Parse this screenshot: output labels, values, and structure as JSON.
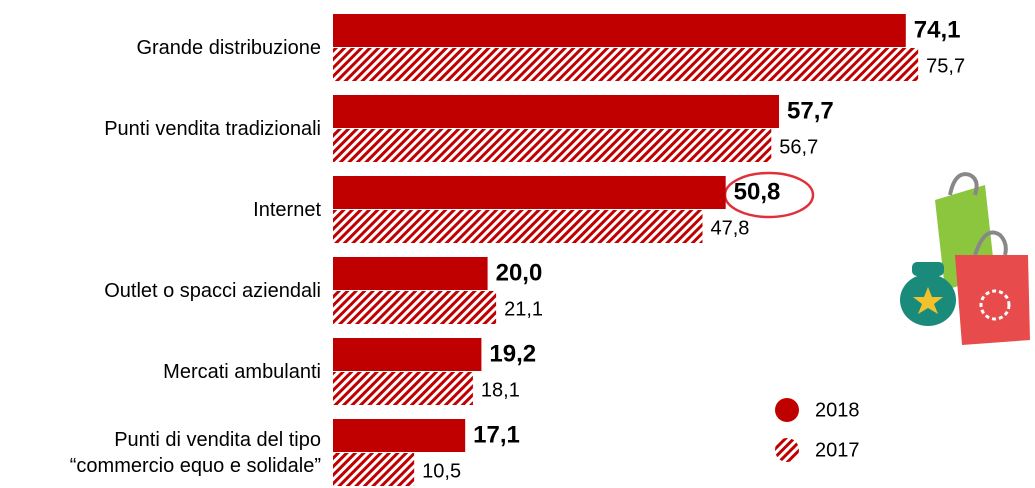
{
  "chart_data": {
    "type": "hbar",
    "categories": [
      "Grande distribuzione",
      "Punti vendita tradizionali",
      "Internet",
      "Outlet o spacci aziendali",
      "Mercati ambulanti",
      "Punti di vendita del tipo “commercio equo e solidale”"
    ],
    "series": [
      {
        "name": "2018",
        "color": "#c00000",
        "hatch": false,
        "values": [
          74.1,
          57.7,
          50.8,
          20.0,
          19.2,
          17.1
        ],
        "value_labels": [
          "74,1",
          "57,7",
          "50,8",
          "20,0",
          "19,2",
          "17,1"
        ]
      },
      {
        "name": "2017",
        "color": "#c00000",
        "hatch": true,
        "values": [
          75.7,
          56.7,
          47.8,
          21.1,
          18.1,
          10.5
        ],
        "value_labels": [
          "75,7",
          "56,7",
          "47,8",
          "21,1",
          "18,1",
          "10,5"
        ]
      }
    ],
    "legend": "lower right"
  }
}
